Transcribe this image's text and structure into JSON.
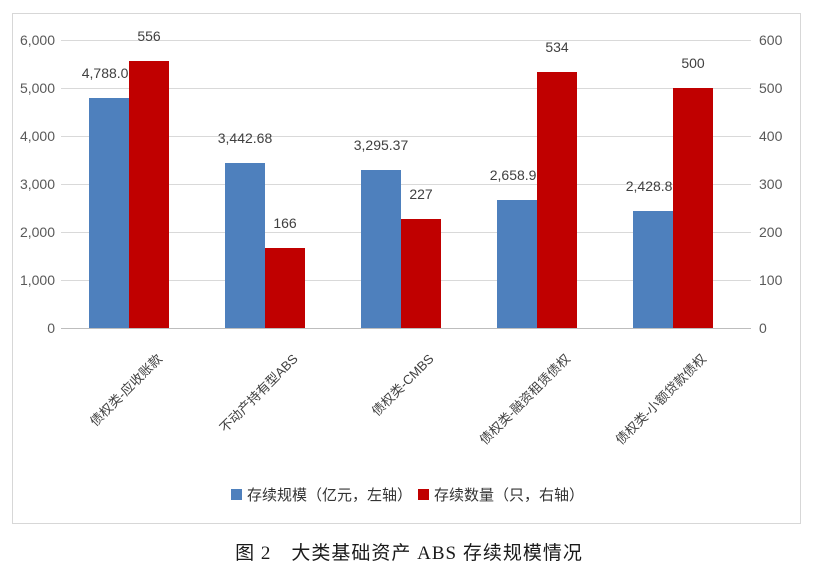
{
  "caption": {
    "text": "图 2　大类基础资产 ABS 存续规模情况"
  },
  "colors": {
    "series_scale": "#4e80bd",
    "series_count": "#c00000",
    "gridline": "#d9d9d9",
    "axis_line": "#bdbdbd",
    "tick_text": "#595959",
    "data_label_text": "#404040",
    "chart_border": "#d7d7d7",
    "background": "#ffffff"
  },
  "chart_data": {
    "type": "bar",
    "title": "",
    "xlabel": "",
    "ylabel_left": "存续规模（亿元）",
    "ylabel_right": "存续数量（只）",
    "grid": true,
    "legend_position": "bottom",
    "categories": [
      "债权类-应收账款",
      "不动产持有型ABS",
      "债权类-CMBS",
      "债权类-融资租赁债权",
      "债权类-小额贷款债权"
    ],
    "series": [
      {
        "name": "存续规模（亿元，左轴）",
        "axis": "left",
        "color": "#4e80bd",
        "values": [
          4788.07,
          3442.68,
          3295.37,
          2658.92,
          2428.82
        ],
        "labels": [
          "4,788.07",
          "3,442.68",
          "3,295.37",
          "2,658.92",
          "2,428.82"
        ]
      },
      {
        "name": "存续数量（只，右轴）",
        "axis": "right",
        "color": "#c00000",
        "values": [
          556,
          166,
          227,
          534,
          500
        ],
        "labels": [
          "556",
          "166",
          "227",
          "534",
          "500"
        ]
      }
    ],
    "left_axis": {
      "min": 0,
      "max": 6000,
      "ticks": [
        "6,000",
        "5,000",
        "4,000",
        "3,000",
        "2,000",
        "1,000",
        "0"
      ]
    },
    "right_axis": {
      "min": 0,
      "max": 600,
      "ticks": [
        "600",
        "500",
        "400",
        "300",
        "200",
        "100",
        "0"
      ]
    }
  }
}
